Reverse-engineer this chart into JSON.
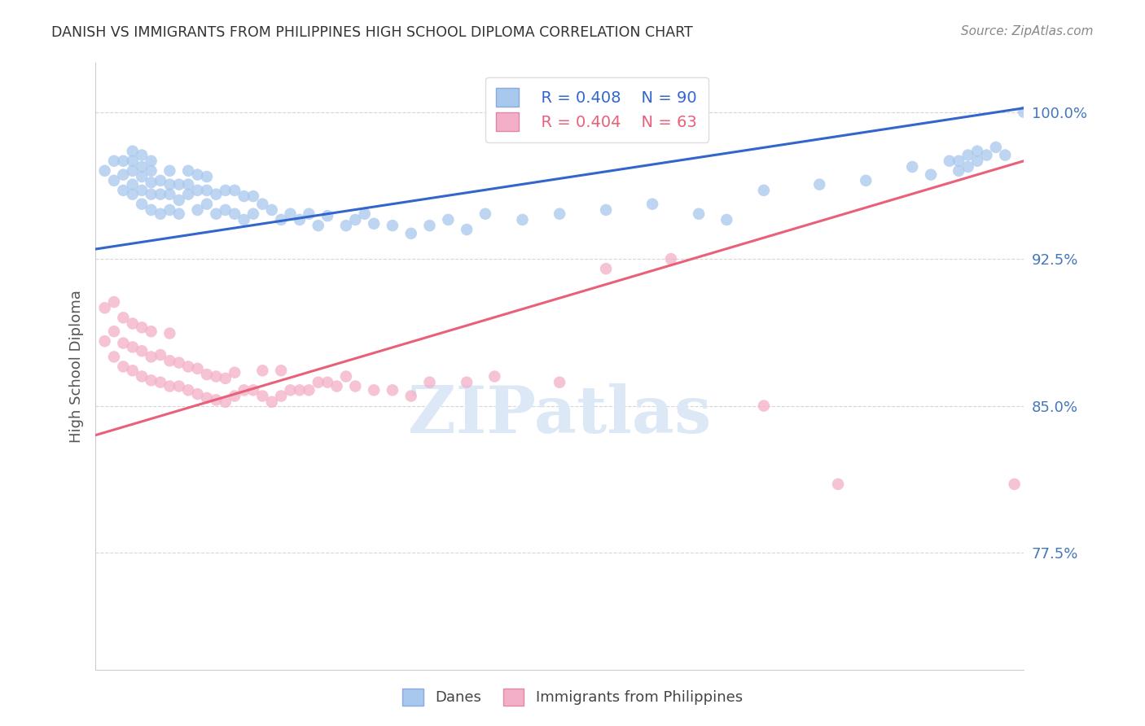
{
  "title": "DANISH VS IMMIGRANTS FROM PHILIPPINES HIGH SCHOOL DIPLOMA CORRELATION CHART",
  "source": "Source: ZipAtlas.com",
  "ylabel": "High School Diploma",
  "ytick_labels": [
    "100.0%",
    "92.5%",
    "85.0%",
    "77.5%"
  ],
  "ytick_values": [
    1.0,
    0.925,
    0.85,
    0.775
  ],
  "xlim": [
    0.0,
    1.0
  ],
  "ylim": [
    0.715,
    1.025
  ],
  "legend_blue_r": "R = 0.408",
  "legend_blue_n": "N = 90",
  "legend_pink_r": "R = 0.404",
  "legend_pink_n": "N = 63",
  "blue_color": "#a8c8ee",
  "blue_line_color": "#3366cc",
  "pink_color": "#f4afc8",
  "pink_line_color": "#e8607a",
  "grid_color": "#cccccc",
  "title_color": "#333333",
  "axis_label_color": "#555555",
  "ytick_color": "#4477bb",
  "xtick_color": "#4477bb",
  "source_color": "#888888",
  "watermark_color": "#dce8f5",
  "blue_scatter_x": [
    0.01,
    0.02,
    0.02,
    0.03,
    0.03,
    0.03,
    0.04,
    0.04,
    0.04,
    0.04,
    0.04,
    0.05,
    0.05,
    0.05,
    0.05,
    0.05,
    0.06,
    0.06,
    0.06,
    0.06,
    0.06,
    0.07,
    0.07,
    0.07,
    0.08,
    0.08,
    0.08,
    0.08,
    0.09,
    0.09,
    0.09,
    0.1,
    0.1,
    0.1,
    0.11,
    0.11,
    0.11,
    0.12,
    0.12,
    0.12,
    0.13,
    0.13,
    0.14,
    0.14,
    0.15,
    0.15,
    0.16,
    0.16,
    0.17,
    0.17,
    0.18,
    0.19,
    0.2,
    0.21,
    0.22,
    0.23,
    0.24,
    0.25,
    0.27,
    0.28,
    0.29,
    0.3,
    0.32,
    0.34,
    0.36,
    0.38,
    0.4,
    0.42,
    0.46,
    0.5,
    0.55,
    0.6,
    0.65,
    0.68,
    0.72,
    0.78,
    0.83,
    0.88,
    0.9,
    0.92,
    0.93,
    0.93,
    0.94,
    0.94,
    0.95,
    0.95,
    0.96,
    0.97,
    0.98,
    1.0
  ],
  "blue_scatter_y": [
    0.97,
    0.965,
    0.975,
    0.96,
    0.968,
    0.975,
    0.958,
    0.963,
    0.97,
    0.975,
    0.98,
    0.953,
    0.96,
    0.967,
    0.972,
    0.978,
    0.95,
    0.958,
    0.964,
    0.97,
    0.975,
    0.948,
    0.958,
    0.965,
    0.95,
    0.958,
    0.963,
    0.97,
    0.948,
    0.955,
    0.963,
    0.958,
    0.963,
    0.97,
    0.95,
    0.96,
    0.968,
    0.953,
    0.96,
    0.967,
    0.948,
    0.958,
    0.95,
    0.96,
    0.948,
    0.96,
    0.945,
    0.957,
    0.948,
    0.957,
    0.953,
    0.95,
    0.945,
    0.948,
    0.945,
    0.948,
    0.942,
    0.947,
    0.942,
    0.945,
    0.948,
    0.943,
    0.942,
    0.938,
    0.942,
    0.945,
    0.94,
    0.948,
    0.945,
    0.948,
    0.95,
    0.953,
    0.948,
    0.945,
    0.96,
    0.963,
    0.965,
    0.972,
    0.968,
    0.975,
    0.97,
    0.975,
    0.972,
    0.978,
    0.975,
    0.98,
    0.978,
    0.982,
    0.978,
    1.0
  ],
  "pink_scatter_x": [
    0.01,
    0.01,
    0.02,
    0.02,
    0.02,
    0.03,
    0.03,
    0.03,
    0.04,
    0.04,
    0.04,
    0.05,
    0.05,
    0.05,
    0.06,
    0.06,
    0.06,
    0.07,
    0.07,
    0.08,
    0.08,
    0.08,
    0.09,
    0.09,
    0.1,
    0.1,
    0.11,
    0.11,
    0.12,
    0.12,
    0.13,
    0.13,
    0.14,
    0.14,
    0.15,
    0.15,
    0.16,
    0.17,
    0.18,
    0.18,
    0.19,
    0.2,
    0.2,
    0.21,
    0.22,
    0.23,
    0.24,
    0.25,
    0.26,
    0.27,
    0.28,
    0.3,
    0.32,
    0.34,
    0.36,
    0.4,
    0.43,
    0.5,
    0.55,
    0.62,
    0.72,
    0.8,
    0.99
  ],
  "pink_scatter_y": [
    0.883,
    0.9,
    0.875,
    0.888,
    0.903,
    0.87,
    0.882,
    0.895,
    0.868,
    0.88,
    0.892,
    0.865,
    0.878,
    0.89,
    0.863,
    0.875,
    0.888,
    0.862,
    0.876,
    0.86,
    0.873,
    0.887,
    0.86,
    0.872,
    0.858,
    0.87,
    0.856,
    0.869,
    0.854,
    0.866,
    0.853,
    0.865,
    0.852,
    0.864,
    0.855,
    0.867,
    0.858,
    0.858,
    0.855,
    0.868,
    0.852,
    0.855,
    0.868,
    0.858,
    0.858,
    0.858,
    0.862,
    0.862,
    0.86,
    0.865,
    0.86,
    0.858,
    0.858,
    0.855,
    0.862,
    0.862,
    0.865,
    0.862,
    0.92,
    0.925,
    0.85,
    0.81,
    0.81
  ],
  "blue_line_y_start": 0.93,
  "blue_line_y_end": 1.002,
  "pink_line_y_start": 0.835,
  "pink_line_y_end": 0.975
}
